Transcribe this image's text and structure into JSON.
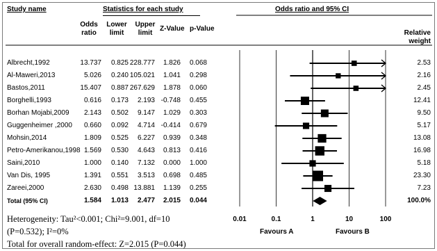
{
  "headers": {
    "study_name": "Study name",
    "stats_group": "Statistics for each study",
    "or": [
      "Odds",
      "ratio"
    ],
    "lower": [
      "Lower",
      "limit"
    ],
    "upper": [
      "Upper",
      "limit"
    ],
    "z": "Z-Value",
    "p": "p-Value",
    "plot_title": "Odds ratio and 95% CI",
    "weight": [
      "Relative",
      "weight"
    ]
  },
  "footer": {
    "heterogeneity_1": "Heterogeneity: Tau²<0.001; Chi²=9.001, df=10",
    "heterogeneity_2": "(P=0.532); I²=0%",
    "overall": "Total for overall random-effect:  Z=2.015 (P=0.044)",
    "favours_a": "Favours A",
    "favours_b": "Favours B"
  },
  "chart_data": {
    "type": "forest",
    "xscale": "log",
    "xlim": [
      0.01,
      100
    ],
    "xticks": [
      0.01,
      0.1,
      1,
      10,
      100
    ],
    "xtick_labels": [
      "0.01",
      "0.1",
      "1",
      "10",
      "100"
    ],
    "studies": [
      {
        "name": "Albrecht,1992",
        "or": "13.737",
        "lower": "0.825",
        "upper": "228.777",
        "z": "1.826",
        "p": "0.068",
        "weight": "2.53",
        "or_v": 13.737,
        "lo_v": 0.825,
        "hi_v": 228.777,
        "w_v": 2.53
      },
      {
        "name": "Al-Maweri,2013",
        "or": "5.026",
        "lower": "0.240",
        "upper": "105.021",
        "z": "1.041",
        "p": "0.298",
        "weight": "2.16",
        "or_v": 5.026,
        "lo_v": 0.24,
        "hi_v": 105.021,
        "w_v": 2.16
      },
      {
        "name": "Bastos,2011",
        "or": "15.407",
        "lower": "0.887",
        "upper": "267.629",
        "z": "1.878",
        "p": "0.060",
        "weight": "2.45",
        "or_v": 15.407,
        "lo_v": 0.887,
        "hi_v": 267.629,
        "w_v": 2.45
      },
      {
        "name": "Borghelli,1993",
        "or": "0.616",
        "lower": "0.173",
        "upper": "2.193",
        "z": "-0.748",
        "p": "0.455",
        "weight": "12.41",
        "or_v": 0.616,
        "lo_v": 0.173,
        "hi_v": 2.193,
        "w_v": 12.41
      },
      {
        "name": "Borhan Mojabi,2009",
        "or": "2.143",
        "lower": "0.502",
        "upper": "9.147",
        "z": "1.029",
        "p": "0.303",
        "weight": "9.50",
        "or_v": 2.143,
        "lo_v": 0.502,
        "hi_v": 9.147,
        "w_v": 9.5
      },
      {
        "name": "Guggenheimer ,2000",
        "or": "0.660",
        "lower": "0.092",
        "upper": "4.714",
        "z": "-0.414",
        "p": "0.679",
        "weight": "5.17",
        "or_v": 0.66,
        "lo_v": 0.092,
        "hi_v": 4.714,
        "w_v": 5.17
      },
      {
        "name": "Mohsin,2014",
        "or": "1.809",
        "lower": "0.525",
        "upper": "6.227",
        "z": "0.939",
        "p": "0.348",
        "weight": "13.08",
        "or_v": 1.809,
        "lo_v": 0.525,
        "hi_v": 6.227,
        "w_v": 13.08
      },
      {
        "name": "Petro-Amerikanou,1998",
        "or": "1.569",
        "lower": "0.530",
        "upper": "4.643",
        "z": "0.813",
        "p": "0.416",
        "weight": "16.98",
        "or_v": 1.569,
        "lo_v": 0.53,
        "hi_v": 4.643,
        "w_v": 16.98
      },
      {
        "name": "Saini,2010",
        "or": "1.000",
        "lower": "0.140",
        "upper": "7.132",
        "z": "0.000",
        "p": "1.000",
        "weight": "5.18",
        "or_v": 1.0,
        "lo_v": 0.14,
        "hi_v": 7.132,
        "w_v": 5.18
      },
      {
        "name": "Van Dis, 1995",
        "or": "1.391",
        "lower": "0.551",
        "upper": "3.513",
        "z": "0.698",
        "p": "0.485",
        "weight": "23.30",
        "or_v": 1.391,
        "lo_v": 0.551,
        "hi_v": 3.513,
        "w_v": 23.3
      },
      {
        "name": "Zareei,2000",
        "or": "2.630",
        "lower": "0.498",
        "upper": "13.881",
        "z": "1.139",
        "p": "0.255",
        "weight": "7.23",
        "or_v": 2.63,
        "lo_v": 0.498,
        "hi_v": 13.881,
        "w_v": 7.23
      }
    ],
    "total": {
      "name": "Total (95% CI)",
      "or": "1.584",
      "lower": "1.013",
      "upper": "2.477",
      "z": "2.015",
      "p": "0.044",
      "weight": "100.0%",
      "or_v": 1.584,
      "lo_v": 1.013,
      "hi_v": 2.477
    }
  }
}
